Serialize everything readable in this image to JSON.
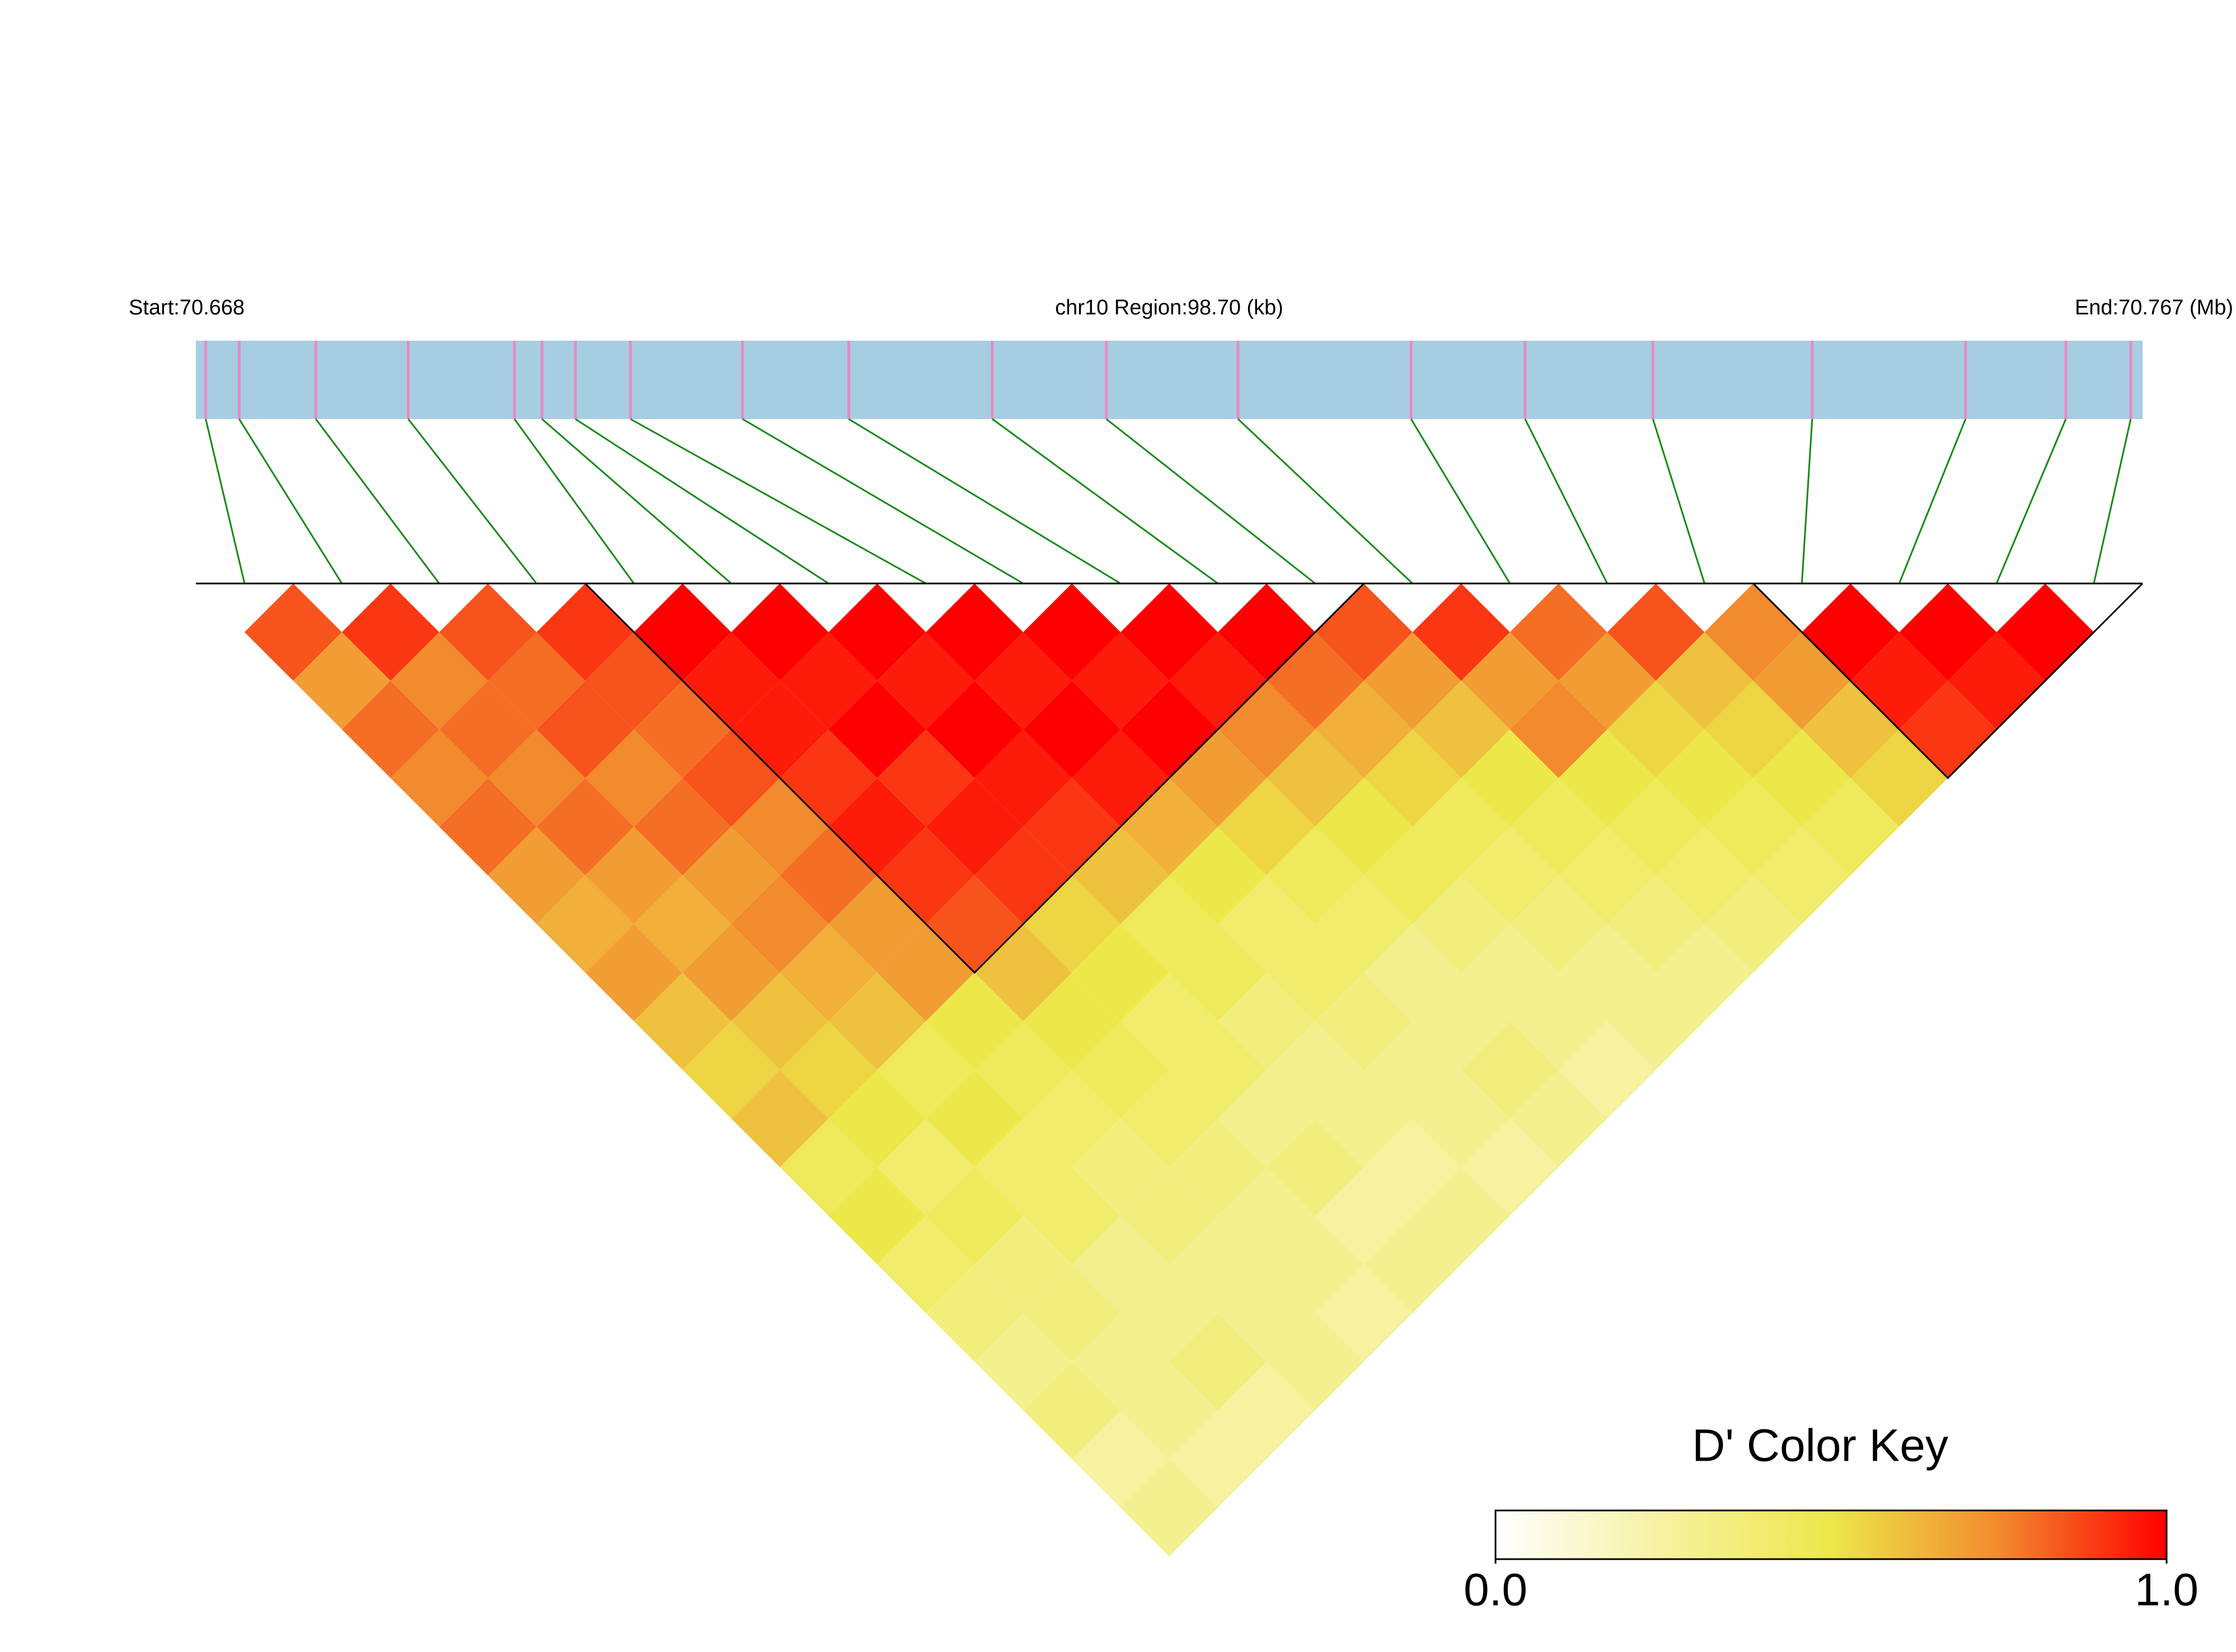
{
  "chart_data": {
    "type": "ld-heatmap",
    "start_label": "Start:70.668",
    "region_label": "chr10 Region:98.70 (kb)",
    "end_label": "End:70.767 (Mb)",
    "xlim": [
      70.668,
      70.767
    ],
    "snp_positions": [
      70.6685,
      70.6702,
      70.6741,
      70.6788,
      70.6842,
      70.6856,
      70.6873,
      70.6901,
      70.6958,
      70.7012,
      70.7085,
      70.7143,
      70.721,
      70.7298,
      70.7356,
      70.7421,
      70.7502,
      70.758,
      70.7631,
      70.7664
    ],
    "track_color": "#a6cde2",
    "snp_color": "#e78ac3",
    "link_color": "#138a13",
    "ld_matrix": [
      [
        0.85,
        0.7,
        0.8,
        0.75,
        0.8,
        0.7,
        0.65,
        0.7,
        0.6,
        0.55,
        0.6,
        0.45,
        0.5,
        0.4,
        0.35,
        0.3,
        0.35,
        0.25,
        0.3
      ],
      [
        0.9,
        0.75,
        0.8,
        0.75,
        0.8,
        0.7,
        0.65,
        0.7,
        0.6,
        0.55,
        0.5,
        0.4,
        0.45,
        0.35,
        0.35,
        0.3,
        0.3,
        0.25
      ],
      [
        0.85,
        0.8,
        0.85,
        0.75,
        0.8,
        0.7,
        0.75,
        0.65,
        0.6,
        0.45,
        0.5,
        0.4,
        0.4,
        0.3,
        0.3,
        0.35,
        0.25
      ],
      [
        0.9,
        0.85,
        0.8,
        0.85,
        0.75,
        0.8,
        0.7,
        0.7,
        0.5,
        0.45,
        0.4,
        0.35,
        0.35,
        0.3,
        0.3,
        0.3
      ],
      [
        1,
        0.95,
        0.95,
        0.9,
        0.95,
        0.9,
        0.85,
        0.6,
        0.5,
        0.45,
        0.4,
        0.35,
        0.3,
        0.3,
        0.25
      ],
      [
        1,
        0.95,
        1,
        0.9,
        0.95,
        0.9,
        0.55,
        0.5,
        0.4,
        0.4,
        0.3,
        0.35,
        0.25,
        0.3
      ],
      [
        1,
        0.95,
        1,
        0.95,
        0.9,
        0.6,
        0.45,
        0.45,
        0.35,
        0.3,
        0.3,
        0.25,
        0.3
      ],
      [
        1,
        0.95,
        1,
        0.95,
        0.65,
        0.5,
        0.4,
        0.4,
        0.35,
        0.3,
        0.3,
        0.25
      ],
      [
        1,
        0.95,
        1,
        0.7,
        0.55,
        0.45,
        0.4,
        0.3,
        0.3,
        0.35,
        0.3
      ],
      [
        1,
        0.95,
        0.75,
        0.6,
        0.5,
        0.45,
        0.35,
        0.3,
        0.3,
        0.25
      ],
      [
        1,
        0.8,
        0.65,
        0.55,
        0.45,
        0.4,
        0.35,
        0.3,
        0.3
      ],
      [
        0.85,
        0.7,
        0.6,
        0.5,
        0.45,
        0.4,
        0.35,
        0.3
      ],
      [
        0.9,
        0.7,
        0.75,
        0.5,
        0.45,
        0.4,
        0.35
      ],
      [
        0.8,
        0.7,
        0.55,
        0.5,
        0.45,
        0.4
      ],
      [
        0.85,
        0.6,
        0.55,
        0.5,
        0.45
      ],
      [
        0.75,
        0.7,
        0.6,
        0.55
      ],
      [
        1,
        0.95,
        0.9
      ],
      [
        1,
        0.95
      ],
      [
        1
      ]
    ],
    "blocks": [
      [
        4,
        11
      ],
      [
        16,
        19
      ]
    ],
    "colorbar": {
      "title": "D' Color Key",
      "lim": [
        0,
        1
      ],
      "ticks": [
        {
          "value": 0,
          "label": "0.0"
        },
        {
          "value": 1,
          "label": "1.0"
        }
      ],
      "colors": [
        "#ffffff",
        "#f6f2a0",
        "#ece84a",
        "#f28a2e",
        "#ff0000"
      ]
    }
  }
}
